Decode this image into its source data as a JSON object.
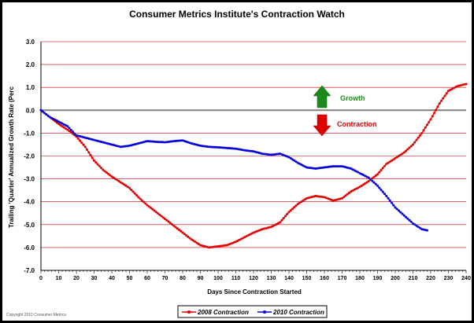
{
  "chart_data": {
    "type": "line",
    "title": "Consumer Metrics Institute's Contraction Watch",
    "xlabel": "Days Since Contraction Started",
    "ylabel": "Trailing 'Quarter' Annualized Growth Rate (Perc",
    "xlim": [
      0,
      240
    ],
    "ylim": [
      -7.0,
      3.0
    ],
    "xticks": [
      "0",
      "10",
      "20",
      "30",
      "40",
      "50",
      "60",
      "70",
      "80",
      "90",
      "100",
      "110",
      "120",
      "130",
      "140",
      "150",
      "160",
      "170",
      "180",
      "190",
      "200",
      "210",
      "220",
      "230",
      "240"
    ],
    "yticks": [
      "3.0",
      "2.0",
      "1.0",
      "0.0",
      "-1.0",
      "-2.0",
      "-3.0",
      "-4.0",
      "-5.0",
      "-6.0",
      "-7.0"
    ],
    "grid": true,
    "legend_position": "bottom",
    "copyright": "Copyright 2010 Consumer Metrics",
    "annotations": {
      "growth": "Growth",
      "contraction": "Contraction"
    },
    "colors": {
      "series_2008": "#e00000",
      "series_2010": "#0000e0",
      "grid": "#cc0000",
      "zero_line": "#808080",
      "growth_arrow": "#1a8a1a",
      "contraction_arrow": "#e00000"
    },
    "series": [
      {
        "name": "2008 Contraction",
        "x": [
          0,
          5,
          10,
          15,
          20,
          25,
          30,
          35,
          40,
          45,
          50,
          55,
          60,
          65,
          70,
          75,
          80,
          85,
          90,
          95,
          100,
          105,
          110,
          115,
          120,
          125,
          130,
          135,
          140,
          145,
          150,
          155,
          160,
          165,
          170,
          175,
          180,
          185,
          190,
          195,
          200,
          205,
          210,
          215,
          220,
          225,
          230,
          235,
          240
        ],
        "y": [
          0,
          -0.3,
          -0.6,
          -0.85,
          -1.15,
          -1.6,
          -2.2,
          -2.6,
          -2.9,
          -3.15,
          -3.4,
          -3.8,
          -4.15,
          -4.45,
          -4.75,
          -5.05,
          -5.35,
          -5.65,
          -5.9,
          -6.0,
          -5.95,
          -5.9,
          -5.75,
          -5.55,
          -5.35,
          -5.2,
          -5.1,
          -4.9,
          -4.45,
          -4.1,
          -3.85,
          -3.75,
          -3.8,
          -3.95,
          -3.85,
          -3.55,
          -3.35,
          -3.1,
          -2.8,
          -2.35,
          -2.1,
          -1.85,
          -1.5,
          -1.0,
          -0.4,
          0.3,
          0.85,
          1.05,
          1.15
        ]
      },
      {
        "name": "2010 Contraction",
        "x": [
          0,
          5,
          10,
          15,
          20,
          25,
          30,
          35,
          40,
          45,
          50,
          55,
          60,
          65,
          70,
          75,
          80,
          85,
          90,
          95,
          100,
          105,
          110,
          115,
          120,
          125,
          130,
          135,
          140,
          145,
          150,
          155,
          160,
          165,
          170,
          175,
          180,
          185,
          190,
          195,
          200,
          205,
          210,
          215,
          218
        ],
        "y": [
          0,
          -0.3,
          -0.5,
          -0.7,
          -1.1,
          -1.2,
          -1.3,
          -1.4,
          -1.5,
          -1.6,
          -1.55,
          -1.45,
          -1.35,
          -1.38,
          -1.4,
          -1.35,
          -1.32,
          -1.45,
          -1.55,
          -1.6,
          -1.62,
          -1.65,
          -1.68,
          -1.75,
          -1.8,
          -1.9,
          -1.95,
          -1.9,
          -2.05,
          -2.3,
          -2.5,
          -2.55,
          -2.5,
          -2.45,
          -2.45,
          -2.55,
          -2.75,
          -2.95,
          -3.3,
          -3.75,
          -4.25,
          -4.6,
          -4.95,
          -5.2,
          -5.25
        ]
      }
    ]
  }
}
